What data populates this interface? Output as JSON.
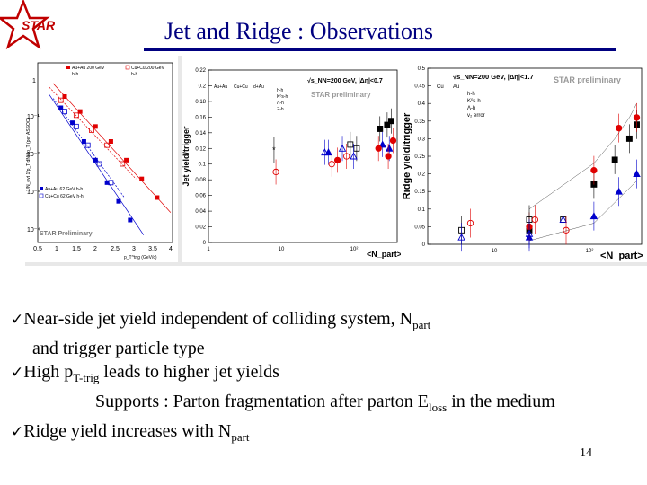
{
  "slide": {
    "title": "Jet and Ridge : Observations",
    "logo_text": "STAR",
    "number": "14",
    "colors": {
      "title": "#000080",
      "logo": "#c00000",
      "red": "#e00000",
      "blue": "#0000cc",
      "black": "#000000"
    }
  },
  "bullets": [
    {
      "text": "Near-side jet yield independent of  colliding system, N",
      "sub": "part"
    },
    {
      "text": "and trigger particle type"
    },
    {
      "pre": "High p",
      "sub1": "T-trig",
      "post": " leads to  higher jet yields"
    },
    {
      "pre": "Supports : Parton fragmentation after parton E",
      "sub1": "loss",
      "post": " in the medium"
    },
    {
      "text": "Ridge yield increases with N",
      "sub": "part"
    }
  ],
  "panels": {
    "spectra": {
      "ylabel": "1/N_evt 1/p_T dN/dp_T (per ASSOC)",
      "xlabel": "p_T^trig (GeV/c)",
      "xticks": [
        "0.5",
        "1",
        "1.5",
        "2",
        "2.5",
        "3",
        "3.5",
        "4"
      ],
      "yticks": [
        "1",
        "10⁻¹",
        "10⁻²",
        "10⁻³",
        "10⁻⁴"
      ],
      "legend_top": [
        "Au+Au 200 GeV",
        "Cu+Cu 200 GeV",
        "h-h",
        "h-h"
      ],
      "legend_bottom": [
        "Au+Au 62 GeV h-h",
        "Cu+Cu 62 GeV h-h"
      ],
      "watermark": "STAR Preliminary"
    },
    "jet": {
      "energy": "√s_NN=200 GeV, |Δη|<0.7",
      "watermark": "STAR preliminary",
      "systems": [
        "Au+Au",
        "Cu+Cu",
        "d+Au"
      ],
      "species": [
        "h-h",
        "K⁰s-h",
        "Λ-h",
        "Ξ-h"
      ],
      "ylabel": "Jet yield/trigger",
      "xlabel": "<N_part>",
      "yticks": [
        "0",
        "0.02",
        "0.04",
        "0.06",
        "0.08",
        "0.1",
        "0.12",
        "0.14",
        "0.16",
        "0.18",
        "0.2",
        "0.22"
      ],
      "xticks": [
        "1",
        "10",
        "10²"
      ]
    },
    "ridge": {
      "energy": "√s_NN=200 GeV, |Δη|<1.7",
      "watermark": "STAR preliminary",
      "systems": [
        "Cu",
        "Au"
      ],
      "species": [
        "h-h",
        "K⁰s-h",
        "Λ-h",
        "v₂ error"
      ],
      "ylabel": "Ridge yield/trigger",
      "xlabel": "<N_part>",
      "yticks": [
        "0",
        "0.05",
        "0.1",
        "0.15",
        "0.2",
        "0.25",
        "0.3",
        "0.35",
        "0.4",
        "0.45",
        "0.5"
      ],
      "xticks": [
        "10",
        "10²"
      ]
    }
  },
  "chart_data": [
    {
      "type": "scatter",
      "title": "",
      "xlabel": "p_T^trig (GeV/c)",
      "ylabel": "1/N_evt 1/p_T dN/dp_T",
      "xlim": [
        0.5,
        4
      ],
      "ylim_log10": [
        -4.5,
        0.3
      ],
      "series": [
        {
          "name": "Au+Au 200 GeV",
          "color": "#e00000",
          "x": [
            1.2,
            1.6,
            2.0,
            2.4,
            2.8,
            3.2,
            3.6
          ],
          "y_log10": [
            -0.6,
            -1.0,
            -1.4,
            -1.8,
            -2.3,
            -2.8,
            -3.3
          ]
        },
        {
          "name": "Cu+Cu 200 GeV",
          "color": "#e00000",
          "open": true,
          "x": [
            1.1,
            1.5,
            1.9,
            2.3,
            2.7
          ],
          "y_log10": [
            -0.7,
            -1.1,
            -1.5,
            -1.9,
            -2.4
          ]
        },
        {
          "name": "Au+Au 62 GeV h-h",
          "color": "#0000cc",
          "x": [
            1.1,
            1.4,
            1.7,
            2.0,
            2.3,
            2.6,
            2.9
          ],
          "y_log10": [
            -0.9,
            -1.3,
            -1.8,
            -2.3,
            -2.9,
            -3.4,
            -3.9
          ]
        },
        {
          "name": "Cu+Cu 62 GeV h-h",
          "color": "#0000cc",
          "open": true,
          "x": [
            1.2,
            1.5,
            1.8,
            2.1,
            2.4
          ],
          "y_log10": [
            -1.0,
            -1.4,
            -1.9,
            -2.4,
            -2.9
          ]
        }
      ]
    },
    {
      "type": "scatter",
      "title": "",
      "xlabel": "<N_part>",
      "ylabel": "Jet yield/trigger",
      "xlim_log10": [
        0,
        2.6
      ],
      "ylim": [
        0,
        0.22
      ],
      "series": [
        {
          "name": "Au+Au h-h",
          "color": "#000000",
          "marker": "square",
          "x": [
            230,
            290,
            330
          ],
          "y": [
            0.145,
            0.15,
            0.155
          ]
        },
        {
          "name": "Au+Au K0s-h",
          "color": "#0000cc",
          "marker": "triangle",
          "x": [
            45,
            250,
            310
          ],
          "y": [
            0.115,
            0.125,
            0.12
          ]
        },
        {
          "name": "Au+Au Λ-h",
          "color": "#e00000",
          "marker": "circle",
          "x": [
            60,
            220,
            300,
            350
          ],
          "y": [
            0.105,
            0.12,
            0.11,
            0.13
          ]
        },
        {
          "name": "Cu+Cu h-h",
          "color": "#000000",
          "marker": "open-square",
          "x": [
            90,
            110
          ],
          "y": [
            0.125,
            0.12
          ]
        },
        {
          "name": "Cu+Cu K0s-h",
          "color": "#0000cc",
          "marker": "open-triangle",
          "x": [
            40,
            70,
            100
          ],
          "y": [
            0.115,
            0.12,
            0.11
          ]
        },
        {
          "name": "Cu+Cu Λ-h",
          "color": "#e00000",
          "marker": "open-circle",
          "x": [
            50,
            80
          ],
          "y": [
            0.1,
            0.11
          ]
        },
        {
          "name": "d+Au",
          "color": "#000000",
          "marker": "star",
          "x": [
            8
          ],
          "y": [
            0.118
          ]
        },
        {
          "name": "d+Au Λ-h",
          "color": "#e00000",
          "marker": "open-circle",
          "x": [
            8.5
          ],
          "y": [
            0.09
          ]
        }
      ]
    },
    {
      "type": "scatter",
      "title": "",
      "xlabel": "<N_part>",
      "ylabel": "Ridge yield/trigger",
      "xlim_log10": [
        0.7,
        2.6
      ],
      "ylim": [
        0,
        0.5
      ],
      "series": [
        {
          "name": "Au h-h",
          "color": "#000000",
          "marker": "square",
          "x": [
            40,
            150,
            230,
            310,
            360
          ],
          "y": [
            0.04,
            0.17,
            0.24,
            0.3,
            0.34
          ]
        },
        {
          "name": "Au K0s-h",
          "color": "#0000cc",
          "marker": "triangle",
          "x": [
            40,
            150,
            250,
            360
          ],
          "y": [
            0.02,
            0.08,
            0.15,
            0.2
          ]
        },
        {
          "name": "Au Λ-h",
          "color": "#e00000",
          "marker": "circle",
          "x": [
            40,
            150,
            250,
            360
          ],
          "y": [
            0.05,
            0.21,
            0.33,
            0.36
          ]
        },
        {
          "name": "Cu h-h",
          "color": "#000000",
          "marker": "open-square",
          "x": [
            10,
            40,
            80
          ],
          "y": [
            0.04,
            0.07,
            0.07
          ]
        },
        {
          "name": "Cu K0s-h",
          "color": "#0000cc",
          "marker": "open-triangle",
          "x": [
            10,
            40,
            80
          ],
          "y": [
            0.02,
            0.03,
            0.07
          ]
        },
        {
          "name": "Cu Λ-h",
          "color": "#e00000",
          "marker": "open-circle",
          "x": [
            12,
            45,
            85
          ],
          "y": [
            0.06,
            0.07,
            0.04
          ]
        }
      ]
    }
  ]
}
